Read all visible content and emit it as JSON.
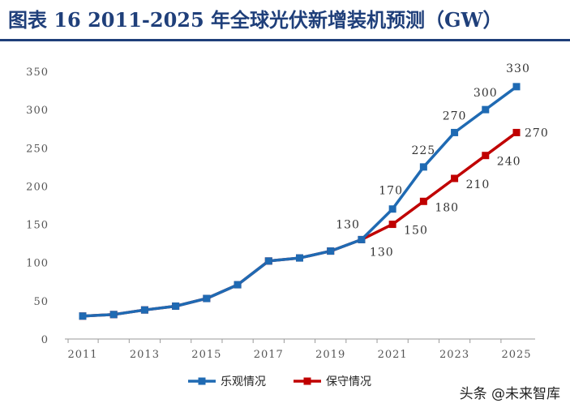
{
  "title": "图表 16   2011-2025 年全球光伏新增装机预测（GW）",
  "watermark": "头条 @未来智库",
  "colors": {
    "title": "#1f3f7a",
    "optimistic": "#1f6ab3",
    "conservative": "#c00000",
    "axis": "#9a9a9a"
  },
  "chart_data": {
    "type": "line",
    "x": [
      2011,
      2012,
      2013,
      2014,
      2015,
      2016,
      2017,
      2018,
      2019,
      2020,
      2021,
      2022,
      2023,
      2024,
      2025
    ],
    "xticks": [
      2011,
      2013,
      2015,
      2017,
      2019,
      2021,
      2023,
      2025
    ],
    "yticks": [
      0,
      50,
      100,
      150,
      200,
      250,
      300,
      350
    ],
    "ylim": [
      0,
      350
    ],
    "grid": false,
    "legend": "bottom",
    "series": [
      {
        "name": "乐观情况",
        "color": "#1f6ab3",
        "values": [
          30,
          32,
          38,
          43,
          53,
          71,
          102,
          106,
          115,
          130,
          170,
          225,
          270,
          300,
          330
        ],
        "labels": {
          "2020": "130",
          "2021": "170",
          "2022": "225",
          "2023": "270",
          "2024": "300",
          "2025": "330"
        }
      },
      {
        "name": "保守情况",
        "color": "#c00000",
        "values": [
          30,
          32,
          38,
          43,
          53,
          71,
          102,
          106,
          115,
          130,
          150,
          180,
          210,
          240,
          270
        ],
        "labels": {
          "2020": "130",
          "2021": "150",
          "2022": "180",
          "2023": "210",
          "2024": "240",
          "2025": "270"
        }
      }
    ]
  }
}
